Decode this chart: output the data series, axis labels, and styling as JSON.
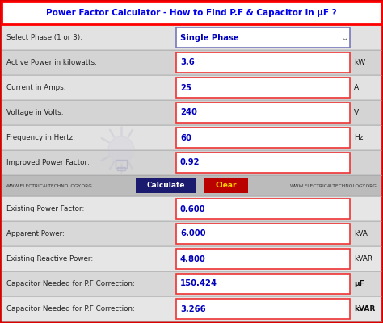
{
  "title": "Power Factor Calculator - How to Find P.F & Capacitor in μF ?",
  "title_color": "#0000EE",
  "title_bg": "#FFFFFF",
  "title_border_top": "#FF0000",
  "title_border_bot": "#3333AA",
  "outer_border": "#DD0000",
  "bg_color": "#C8C8C8",
  "input_rows": [
    {
      "label": "Select Phase (1 or 3):",
      "value": "Single Phase",
      "unit": "",
      "is_dropdown": true
    },
    {
      "label": "Active Power in kilowatts:",
      "value": "3.6",
      "unit": "kW",
      "is_dropdown": false
    },
    {
      "label": "Current in Amps:",
      "value": "25",
      "unit": "A",
      "is_dropdown": false
    },
    {
      "label": "Voltage in Volts:",
      "value": "240",
      "unit": "V",
      "is_dropdown": false
    },
    {
      "label": "Frequency in Hertz:",
      "value": "60",
      "unit": "Hz",
      "is_dropdown": false
    },
    {
      "label": "Improved Power Factor:",
      "value": "0.92",
      "unit": "",
      "is_dropdown": false
    }
  ],
  "button_row": {
    "left_text": "WWW.ELECTRICALTECHNOLOGY.ORG",
    "calc_label": "Calculate",
    "calc_bg": "#1a1a6e",
    "calc_text": "#FFFFFF",
    "clear_label": "Clear",
    "clear_bg": "#BB0000",
    "clear_text": "#FFD700",
    "right_text": "WWW.ELECTRICALTECHNOLOGY.ORG"
  },
  "output_rows": [
    {
      "label": "Existing Power Factor:",
      "value": "0.600",
      "unit": "",
      "unit_bold": false
    },
    {
      "label": "Apparent Power:",
      "value": "6.000",
      "unit": "kVA",
      "unit_bold": false
    },
    {
      "label": "Existing Reactive Power:",
      "value": "4.800",
      "unit": "kVAR",
      "unit_bold": false
    },
    {
      "label": "Capacitor Needed for P.F Correction:",
      "value": "150.424",
      "unit": "μF",
      "unit_bold": true
    },
    {
      "label": "Capacitor Needed for P.F Correction:",
      "value": "3.266",
      "unit": "kVAR",
      "unit_bold": true
    }
  ],
  "field_border_color": "#EE3333",
  "field_text_color": "#0000BB",
  "label_text_color": "#222222",
  "value_box_inner": "#FFFFFF",
  "separator_color": "#AAAAAA",
  "row_colors": [
    "#E2E2E2",
    "#D4D4D4"
  ],
  "btn_row_color": "#BBBBBB",
  "out_row_colors": [
    "#E6E6E6",
    "#D8D8D8"
  ]
}
